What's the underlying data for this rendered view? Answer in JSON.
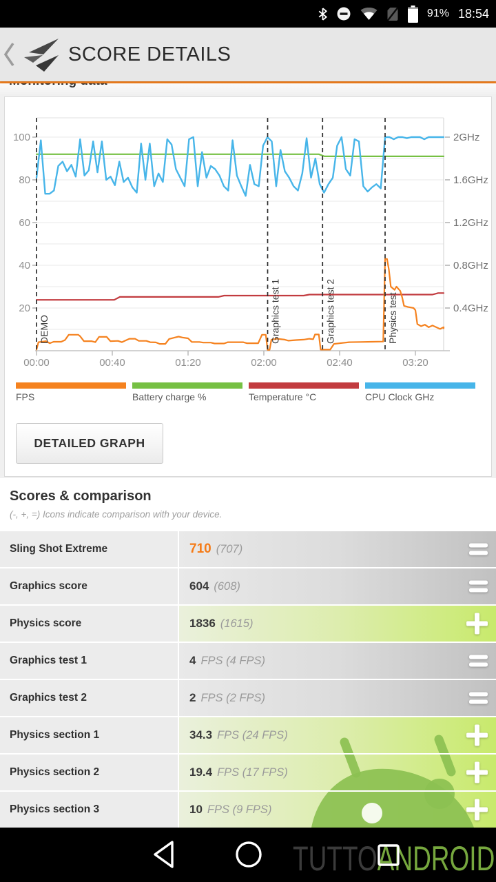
{
  "status_bar": {
    "battery": "91%",
    "time": "18:54"
  },
  "header": {
    "title": "SCORE DETAILS"
  },
  "monitoring_tab": {
    "label": "Monitoring data"
  },
  "chart_card": {
    "button_label": "DETAILED GRAPH"
  },
  "chart_data": {
    "type": "line",
    "title": "Monitoring data",
    "x_axis": {
      "unit": "time mm:ss",
      "tick_seconds": [
        0,
        40,
        80,
        120,
        160,
        200
      ],
      "tick_labels": [
        "00:00",
        "00:40",
        "01:20",
        "02:00",
        "02:40",
        "03:20"
      ],
      "range_seconds": [
        0,
        216
      ]
    },
    "left_axis": {
      "ticks": [
        20,
        40,
        60,
        80,
        100
      ],
      "range": [
        0,
        109
      ],
      "grid_step": 10,
      "grid": true
    },
    "right_axis": {
      "unit": "GHz",
      "ticks": [
        0.4,
        0.8,
        1.2,
        1.6,
        2.0
      ],
      "tick_labels": [
        "0.4GHz",
        "0.8GHz",
        "1.2GHz",
        "1.6GHz",
        "2GHz"
      ],
      "left_axis_scale": 50
    },
    "events": [
      {
        "label": "DEMO",
        "t": 0
      },
      {
        "label": "Graphics test 1",
        "t": 122
      },
      {
        "label": "Graphics test 2",
        "t": 151
      },
      {
        "label": "Physics test",
        "t": 184
      }
    ],
    "legend_position": "bottom",
    "series": [
      {
        "name": "FPS",
        "color": "#f5821f",
        "axis": "left",
        "points": [
          [
            0,
            0.5
          ],
          [
            1,
            4
          ],
          [
            5,
            4.5
          ],
          [
            7,
            3.5
          ],
          [
            9,
            4.2
          ],
          [
            13,
            4.2
          ],
          [
            15,
            5
          ],
          [
            17,
            7.5
          ],
          [
            22,
            7.5
          ],
          [
            23,
            6.8
          ],
          [
            25,
            4.5
          ],
          [
            29,
            4.5
          ],
          [
            31,
            4
          ],
          [
            33,
            6.5
          ],
          [
            37,
            6.5
          ],
          [
            39,
            4.5
          ],
          [
            43,
            4.6
          ],
          [
            45,
            4
          ],
          [
            49,
            5.6
          ],
          [
            52,
            5.6
          ],
          [
            54,
            4.6
          ],
          [
            58,
            4.6
          ],
          [
            60,
            4
          ],
          [
            63,
            3.9
          ],
          [
            65,
            3.2
          ],
          [
            68,
            3.2
          ],
          [
            70,
            5.5
          ],
          [
            73,
            6.2
          ],
          [
            75,
            6.6
          ],
          [
            77,
            6.2
          ],
          [
            80,
            5.8
          ],
          [
            82,
            4.1
          ],
          [
            86,
            4.1
          ],
          [
            88,
            3.8
          ],
          [
            92,
            3.8
          ],
          [
            94,
            3.4
          ],
          [
            99,
            3.4
          ],
          [
            101,
            4
          ],
          [
            109,
            4
          ],
          [
            111,
            3.5
          ],
          [
            117,
            3.5
          ],
          [
            119,
            7.5
          ],
          [
            121,
            7.5
          ],
          [
            122,
            0.4
          ],
          [
            123,
            0.4
          ],
          [
            124,
            5.2
          ],
          [
            127,
            5.6
          ],
          [
            131,
            5.2
          ],
          [
            133,
            4.7
          ],
          [
            137,
            5
          ],
          [
            141,
            5.2
          ],
          [
            144,
            5.6
          ],
          [
            146,
            5.4
          ],
          [
            147,
            7.6
          ],
          [
            149,
            7.6
          ],
          [
            150,
            0.5
          ],
          [
            155,
            0.5
          ],
          [
            157,
            3.2
          ],
          [
            161,
            3.6
          ],
          [
            165,
            4
          ],
          [
            171,
            4.1
          ],
          [
            177,
            4.2
          ],
          [
            183,
            4.3
          ],
          [
            184,
            43
          ],
          [
            185,
            43
          ],
          [
            186,
            38
          ],
          [
            187,
            30
          ],
          [
            189,
            28.5
          ],
          [
            190,
            30
          ],
          [
            192,
            28
          ],
          [
            193,
            25
          ],
          [
            194,
            21
          ],
          [
            196,
            20.5
          ],
          [
            199,
            20
          ],
          [
            200,
            19
          ],
          [
            201,
            12.5
          ],
          [
            203,
            11.5
          ],
          [
            205,
            12.2
          ],
          [
            207,
            11
          ],
          [
            209,
            11.8
          ],
          [
            211,
            11
          ],
          [
            213,
            10.2
          ],
          [
            215,
            11
          ],
          [
            216,
            10.5
          ]
        ]
      },
      {
        "name": "Battery charge %",
        "color": "#76c043",
        "axis": "left",
        "points": [
          [
            0,
            92
          ],
          [
            149,
            92
          ],
          [
            152,
            91
          ],
          [
            216,
            91
          ]
        ]
      },
      {
        "name": "Temperature °C",
        "color": "#c23b3f",
        "axis": "left",
        "points": [
          [
            0,
            23.8
          ],
          [
            41,
            23.8
          ],
          [
            44,
            25.2
          ],
          [
            96,
            25.2
          ],
          [
            99,
            25.8
          ],
          [
            141,
            25.8
          ],
          [
            144,
            26.3
          ],
          [
            209,
            26.3
          ],
          [
            212,
            27
          ],
          [
            216,
            27
          ]
        ]
      },
      {
        "name": "CPU Clock GHz",
        "color": "#47b5e9",
        "axis": "right",
        "t_start": 0,
        "t_step": 2.3,
        "values": [
          1.62,
          1.97,
          1.47,
          1.47,
          1.5,
          1.73,
          1.77,
          1.68,
          1.74,
          1.63,
          1.98,
          1.64,
          1.69,
          1.96,
          1.67,
          1.96,
          1.6,
          1.63,
          1.55,
          1.77,
          1.58,
          1.62,
          1.53,
          1.48,
          1.94,
          1.6,
          1.94,
          1.54,
          1.66,
          1.58,
          1.98,
          1.93,
          1.7,
          1.62,
          1.54,
          1.98,
          2.0,
          1.54,
          1.86,
          1.62,
          1.73,
          1.7,
          1.64,
          1.54,
          1.5,
          1.97,
          1.64,
          1.54,
          1.45,
          1.74,
          1.56,
          1.54,
          1.92,
          2.0,
          1.96,
          1.54,
          1.88,
          1.68,
          1.62,
          1.54,
          1.5,
          1.66,
          1.99,
          1.62,
          1.8,
          1.56,
          1.48,
          1.56,
          1.62,
          1.92,
          2.0,
          1.7,
          1.64,
          1.98,
          1.96,
          1.54,
          1.49,
          1.53,
          1.56,
          1.52,
          2.0,
          2.0,
          1.98,
          2.0,
          2.0,
          1.99,
          2.0,
          2.0,
          2.0,
          1.98,
          2.0,
          2.0,
          2.0,
          2.0,
          2.0
        ]
      }
    ]
  },
  "scores": {
    "heading": "Scores & comparison",
    "subtitle": "(-, +, =) Icons indicate comparison with your device.",
    "rows": [
      {
        "label": "Sling Shot Extreme",
        "value": "710",
        "compare": "(707)",
        "icon": "equals",
        "tone": "gray",
        "highlight": true
      },
      {
        "label": "Graphics score",
        "value": "604",
        "compare": "(608)",
        "icon": "equals",
        "tone": "gray"
      },
      {
        "label": "Physics score",
        "value": "1836",
        "compare": "(1615)",
        "icon": "plus",
        "tone": "green"
      },
      {
        "label": "Graphics test 1",
        "value": "4",
        "compare": "FPS (4 FPS)",
        "icon": "equals",
        "tone": "gray"
      },
      {
        "label": "Graphics test 2",
        "value": "2",
        "compare": "FPS (2 FPS)",
        "icon": "equals",
        "tone": "gray"
      },
      {
        "label": "Physics section 1",
        "value": "34.3",
        "compare": "FPS (24 FPS)",
        "icon": "plus",
        "tone": "green"
      },
      {
        "label": "Physics section 2",
        "value": "19.4",
        "compare": "FPS (17 FPS)",
        "icon": "plus",
        "tone": "green"
      },
      {
        "label": "Physics section 3",
        "value": "10",
        "compare": "FPS (9 FPS)",
        "icon": "plus",
        "tone": "green"
      }
    ]
  },
  "nav_bar": {
    "watermark_left": "TUTTO",
    "watermark_right": "ANDROID"
  },
  "colors": {
    "accent_orange": "#f5821f",
    "score_highlight": "#f57b17",
    "green_row_end": "#c8ea6c",
    "watermark_green": "#8cc152"
  }
}
